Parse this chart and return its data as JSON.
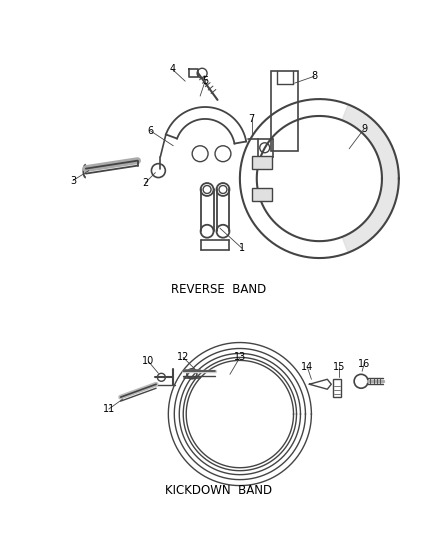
{
  "background_color": "#ffffff",
  "line_color": "#444444",
  "text_color": "#000000",
  "reverse_band_label": "REVERSE  BAND",
  "kickdown_band_label": "KICKDOWN  BAND",
  "figsize": [
    4.38,
    5.33
  ],
  "dpi": 100
}
